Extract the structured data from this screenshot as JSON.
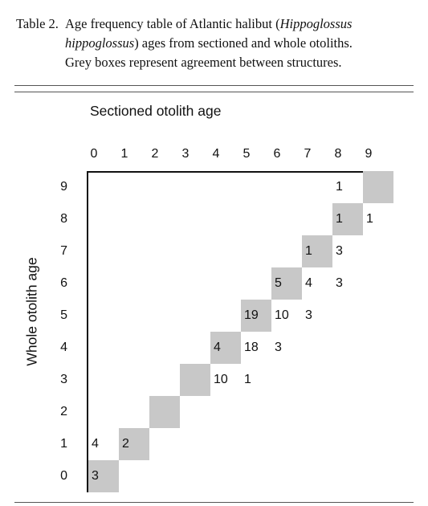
{
  "caption": {
    "label": "Table 2.",
    "line1_a": "Age frequency table of Atlantic halibut (",
    "line1_italic": "Hippoglossus",
    "line2_italic": "hippoglossus",
    "line2_b": ") ages from sectioned and whole otoliths.",
    "line3": "Grey boxes represent agreement between structures."
  },
  "table": {
    "column_axis_title": "Sectioned otolith age",
    "row_axis_title": "Whole otolith age",
    "columns": [
      "0",
      "1",
      "2",
      "3",
      "4",
      "5",
      "6",
      "7",
      "8",
      "9"
    ],
    "rows": [
      "9",
      "8",
      "7",
      "6",
      "5",
      "4",
      "3",
      "2",
      "1",
      "0"
    ],
    "agreement_color": "#c8c8c8",
    "cells": [
      {
        "whole": 0,
        "sectioned": 0,
        "count": "3",
        "agree": true
      },
      {
        "whole": 1,
        "sectioned": 0,
        "count": "4",
        "agree": false
      },
      {
        "whole": 1,
        "sectioned": 1,
        "count": "2",
        "agree": true
      },
      {
        "whole": 2,
        "sectioned": 2,
        "count": "",
        "agree": true
      },
      {
        "whole": 3,
        "sectioned": 3,
        "count": "",
        "agree": true
      },
      {
        "whole": 3,
        "sectioned": 4,
        "count": "10",
        "agree": false
      },
      {
        "whole": 3,
        "sectioned": 5,
        "count": "1",
        "agree": false
      },
      {
        "whole": 4,
        "sectioned": 4,
        "count": "4",
        "agree": true
      },
      {
        "whole": 4,
        "sectioned": 5,
        "count": "18",
        "agree": false
      },
      {
        "whole": 4,
        "sectioned": 6,
        "count": "3",
        "agree": false
      },
      {
        "whole": 5,
        "sectioned": 5,
        "count": "19",
        "agree": true
      },
      {
        "whole": 5,
        "sectioned": 6,
        "count": "10",
        "agree": false
      },
      {
        "whole": 5,
        "sectioned": 7,
        "count": "3",
        "agree": false
      },
      {
        "whole": 6,
        "sectioned": 6,
        "count": "5",
        "agree": true
      },
      {
        "whole": 6,
        "sectioned": 7,
        "count": "4",
        "agree": false
      },
      {
        "whole": 6,
        "sectioned": 8,
        "count": "3",
        "agree": false
      },
      {
        "whole": 7,
        "sectioned": 7,
        "count": "1",
        "agree": true
      },
      {
        "whole": 7,
        "sectioned": 8,
        "count": "3",
        "agree": false
      },
      {
        "whole": 8,
        "sectioned": 8,
        "count": "1",
        "agree": true
      },
      {
        "whole": 8,
        "sectioned": 9,
        "count": "1",
        "agree": false
      },
      {
        "whole": 9,
        "sectioned": 8,
        "count": "1",
        "agree": false
      },
      {
        "whole": 9,
        "sectioned": 9,
        "count": "",
        "agree": true
      }
    ]
  }
}
